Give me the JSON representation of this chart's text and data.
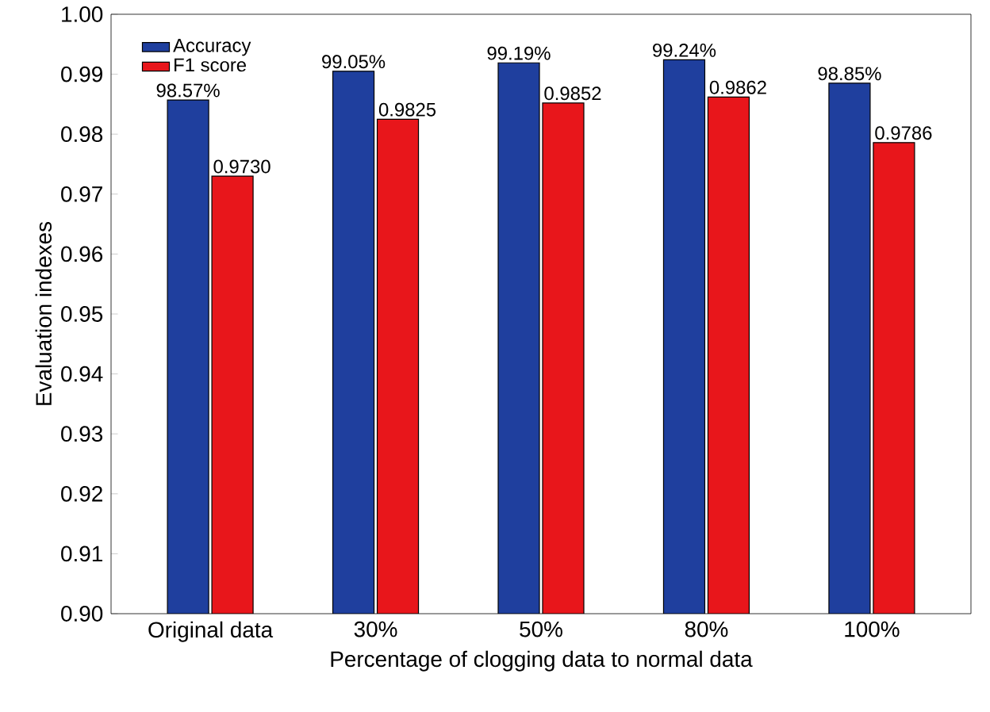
{
  "chart_data": {
    "type": "bar",
    "xlabel": "Percentage of clogging data to normal data",
    "ylabel": "Evaluation indexes",
    "categories": [
      "Original data",
      "30%",
      "50%",
      "80%",
      "100%"
    ],
    "series": [
      {
        "name": "Accuracy",
        "color": "#1f3f9e",
        "values": [
          0.9857,
          0.9905,
          0.9919,
          0.9924,
          0.9885
        ],
        "value_labels": [
          "98.57%",
          "99.05%",
          "99.19%",
          "99.24%",
          "98.85%"
        ]
      },
      {
        "name": "F1 score",
        "color": "#e8161b",
        "values": [
          0.973,
          0.9825,
          0.9852,
          0.9862,
          0.9786
        ],
        "value_labels": [
          "0.9730",
          "0.9825",
          "0.9852",
          "0.9862",
          "0.9786"
        ]
      }
    ],
    "ylim": [
      0.9,
      1.0
    ],
    "yticks": [
      {
        "value": 0.9,
        "label": "0.90"
      },
      {
        "value": 0.91,
        "label": "0.91"
      },
      {
        "value": 0.92,
        "label": "0.92"
      },
      {
        "value": 0.93,
        "label": "0.93"
      },
      {
        "value": 0.94,
        "label": "0.94"
      },
      {
        "value": 0.95,
        "label": "0.95"
      },
      {
        "value": 0.96,
        "label": "0.96"
      },
      {
        "value": 0.97,
        "label": "0.97"
      },
      {
        "value": 0.98,
        "label": "0.98"
      },
      {
        "value": 0.99,
        "label": "0.99"
      },
      {
        "value": 1.0,
        "label": "1.00"
      }
    ],
    "grid": false,
    "legend": "top left"
  }
}
